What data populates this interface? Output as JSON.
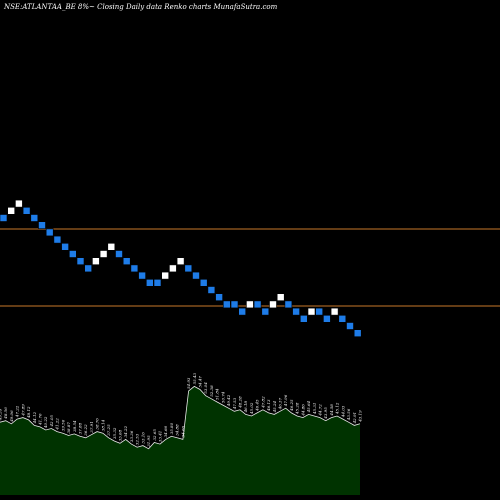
{
  "chart_data": {
    "type": "renko",
    "title": "NSE:ATLANTAA_BE 8%~  Closing Daily data  Renko  charts MunafaSutra.com",
    "colors": {
      "background": "#000000",
      "up_brick": "#ffffff",
      "down_brick": "#1e7ce8",
      "reference_line": "#c8782a",
      "volume_fill": "#003300",
      "volume_line": "#e8e8e8"
    },
    "reference_lines": [
      "upper",
      "lower"
    ],
    "bricks": [
      {
        "level": 0,
        "dir": "down"
      },
      {
        "level": 1,
        "dir": "up"
      },
      {
        "level": 2,
        "dir": "up"
      },
      {
        "level": 1,
        "dir": "down"
      },
      {
        "level": 0,
        "dir": "down"
      },
      {
        "level": -1,
        "dir": "down"
      },
      {
        "level": -2,
        "dir": "down"
      },
      {
        "level": -3,
        "dir": "down"
      },
      {
        "level": -4,
        "dir": "down"
      },
      {
        "level": -5,
        "dir": "down"
      },
      {
        "level": -6,
        "dir": "down"
      },
      {
        "level": -7,
        "dir": "down"
      },
      {
        "level": -6,
        "dir": "up"
      },
      {
        "level": -5,
        "dir": "up"
      },
      {
        "level": -4,
        "dir": "up"
      },
      {
        "level": -5,
        "dir": "down"
      },
      {
        "level": -6,
        "dir": "down"
      },
      {
        "level": -7,
        "dir": "down"
      },
      {
        "level": -8,
        "dir": "down"
      },
      {
        "level": -9,
        "dir": "down"
      },
      {
        "level": -9,
        "dir": "down"
      },
      {
        "level": -8,
        "dir": "up"
      },
      {
        "level": -7,
        "dir": "up"
      },
      {
        "level": -6,
        "dir": "up"
      },
      {
        "level": -7,
        "dir": "down"
      },
      {
        "level": -8,
        "dir": "down"
      },
      {
        "level": -9,
        "dir": "down"
      },
      {
        "level": -10,
        "dir": "down"
      },
      {
        "level": -11,
        "dir": "down"
      },
      {
        "level": -12,
        "dir": "down"
      },
      {
        "level": -12,
        "dir": "down"
      },
      {
        "level": -13,
        "dir": "down"
      },
      {
        "level": -12,
        "dir": "up"
      },
      {
        "level": -12,
        "dir": "down"
      },
      {
        "level": -13,
        "dir": "down"
      },
      {
        "level": -12,
        "dir": "up"
      },
      {
        "level": -11,
        "dir": "up"
      },
      {
        "level": -12,
        "dir": "down"
      },
      {
        "level": -13,
        "dir": "down"
      },
      {
        "level": -14,
        "dir": "down"
      },
      {
        "level": -13,
        "dir": "up"
      },
      {
        "level": -13,
        "dir": "down"
      },
      {
        "level": -14,
        "dir": "down"
      },
      {
        "level": -13,
        "dir": "up"
      },
      {
        "level": -14,
        "dir": "down"
      },
      {
        "level": -15,
        "dir": "down"
      },
      {
        "level": -16,
        "dir": "down"
      }
    ],
    "volume": [
      {
        "value": 42,
        "label": "49.39"
      },
      {
        "value": 44,
        "label": "48.56"
      },
      {
        "value": 40,
        "label": "49.06"
      },
      {
        "value": 46,
        "label": "47.22"
      },
      {
        "value": 48,
        "label": "47.89"
      },
      {
        "value": 45,
        "label": "48.12"
      },
      {
        "value": 38,
        "label": "44.12"
      },
      {
        "value": 36,
        "label": "41.76"
      },
      {
        "value": 32,
        "label": "40.22"
      },
      {
        "value": 34,
        "label": "42.05"
      },
      {
        "value": 30,
        "label": "41.22"
      },
      {
        "value": 28,
        "label": "39.56"
      },
      {
        "value": 25,
        "label": "38.87"
      },
      {
        "value": 27,
        "label": "38.54"
      },
      {
        "value": 24,
        "label": "37.88"
      },
      {
        "value": 22,
        "label": "36.22"
      },
      {
        "value": 26,
        "label": "37.91"
      },
      {
        "value": 30,
        "label": "38.76"
      },
      {
        "value": 28,
        "label": "38.14"
      },
      {
        "value": 22,
        "label": "37.25"
      },
      {
        "value": 18,
        "label": "35.32"
      },
      {
        "value": 15,
        "label": "33.68"
      },
      {
        "value": 20,
        "label": "34.22"
      },
      {
        "value": 14,
        "label": "33.36"
      },
      {
        "value": 10,
        "label": "32.53"
      },
      {
        "value": 12,
        "label": "33.16"
      },
      {
        "value": 8,
        "label": "31.95"
      },
      {
        "value": 16,
        "label": "32.65"
      },
      {
        "value": 14,
        "label": "33.41"
      },
      {
        "value": 20,
        "label": "34.66"
      },
      {
        "value": 24,
        "label": "35.80"
      },
      {
        "value": 22,
        "label": "34.88"
      },
      {
        "value": 20,
        "label": "34.66"
      },
      {
        "value": 82,
        "label": "54.93"
      },
      {
        "value": 88,
        "label": "55.43"
      },
      {
        "value": 84,
        "label": "54.47"
      },
      {
        "value": 76,
        "label": "53.04"
      },
      {
        "value": 72,
        "label": "52.38"
      },
      {
        "value": 68,
        "label": "51.84"
      },
      {
        "value": 64,
        "label": "50.74"
      },
      {
        "value": 60,
        "label": "49.42"
      },
      {
        "value": 56,
        "label": "47.53"
      },
      {
        "value": 58,
        "label": "48.28"
      },
      {
        "value": 52,
        "label": "46.18"
      },
      {
        "value": 50,
        "label": "45.02"
      },
      {
        "value": 54,
        "label": "46.45"
      },
      {
        "value": 58,
        "label": "47.82"
      },
      {
        "value": 54,
        "label": "46.13"
      },
      {
        "value": 52,
        "label": "45.24"
      },
      {
        "value": 56,
        "label": "46.37"
      },
      {
        "value": 60,
        "label": "47.96"
      },
      {
        "value": 54,
        "label": "46.25"
      },
      {
        "value": 50,
        "label": "45.28"
      },
      {
        "value": 48,
        "label": "44.86"
      },
      {
        "value": 52,
        "label": "45.64"
      },
      {
        "value": 50,
        "label": "45.31"
      },
      {
        "value": 48,
        "label": "44.72"
      },
      {
        "value": 44,
        "label": "43.95"
      },
      {
        "value": 48,
        "label": "44.58"
      },
      {
        "value": 50,
        "label": "45.12"
      },
      {
        "value": 46,
        "label": "44.03"
      },
      {
        "value": 42,
        "label": "43.56"
      },
      {
        "value": 38,
        "label": "42.91"
      },
      {
        "value": 40,
        "label": "43.19"
      }
    ]
  }
}
